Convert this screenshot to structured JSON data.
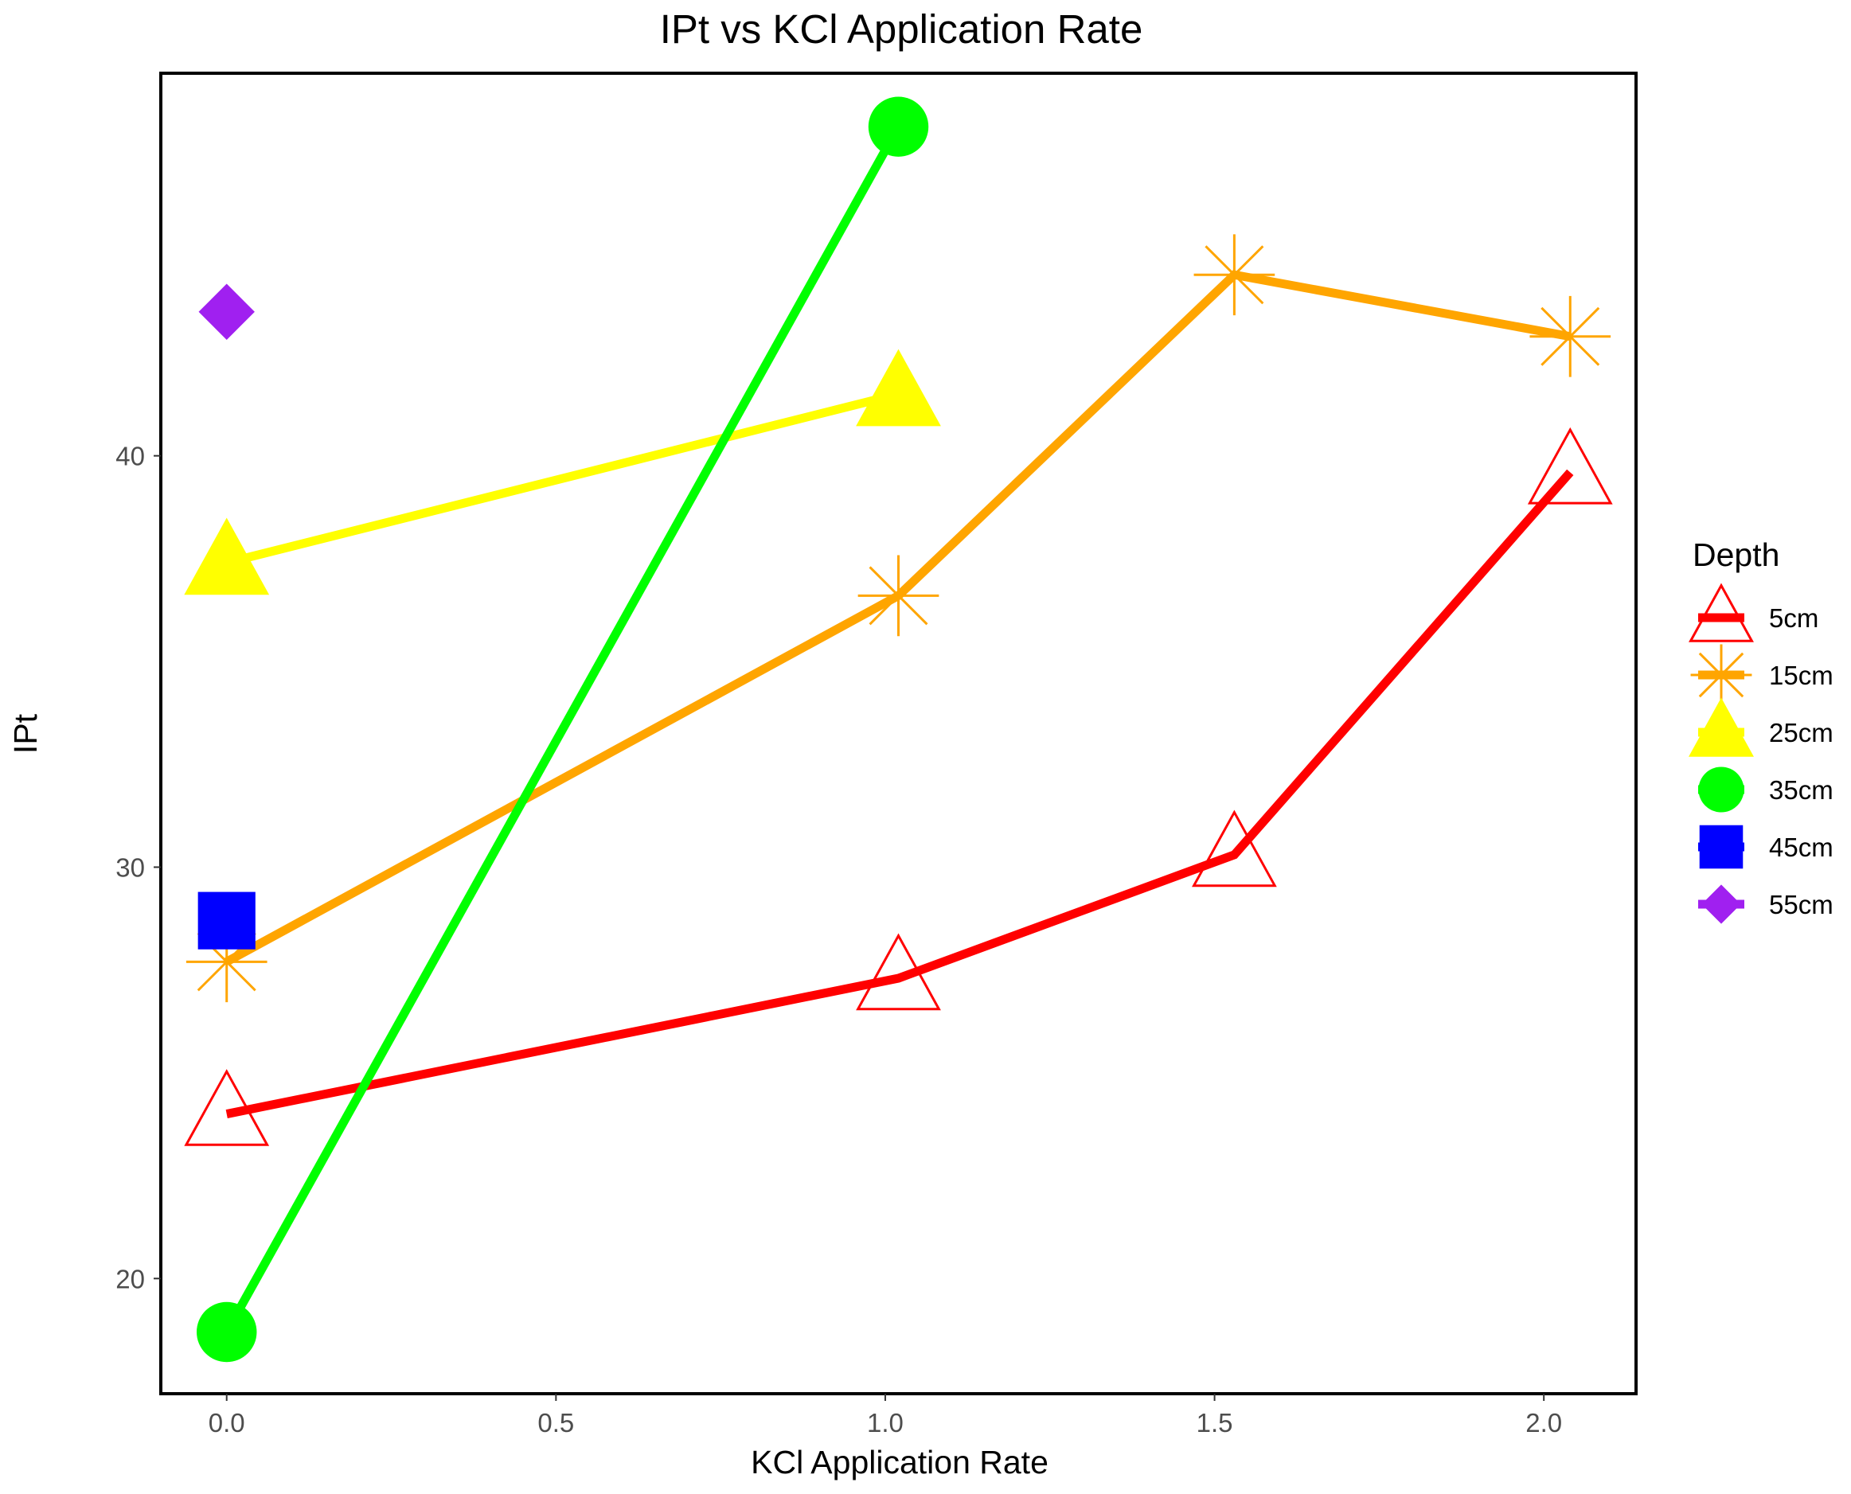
{
  "chart_data": {
    "type": "line",
    "title": "IPt vs KCl Application Rate",
    "xlabel": "KCl Application Rate",
    "ylabel": "IPt",
    "xlim": [
      -0.1,
      2.14
    ],
    "ylim": [
      17.2,
      49.3
    ],
    "x_ticks": [
      0.0,
      0.5,
      1.0,
      1.5,
      2.0
    ],
    "x_tick_labels": [
      "0.0",
      "0.5",
      "1.0",
      "1.5",
      "2.0"
    ],
    "y_ticks": [
      20,
      30,
      40
    ],
    "y_tick_labels": [
      "20",
      "30",
      "40"
    ],
    "grid": false,
    "legend": {
      "title": "Depth",
      "position": "right"
    },
    "series": [
      {
        "name": "5cm",
        "color": "#ff0000",
        "marker": "triangle-open",
        "x": [
          0.0,
          1.02,
          1.53,
          2.04
        ],
        "y": [
          24.0,
          27.3,
          30.3,
          39.6
        ]
      },
      {
        "name": "15cm",
        "color": "#ffa500",
        "marker": "asterisk",
        "x": [
          0.0,
          1.02,
          1.53,
          2.04
        ],
        "y": [
          27.7,
          36.6,
          44.4,
          42.9
        ]
      },
      {
        "name": "25cm",
        "color": "#ffff00",
        "marker": "triangle-filled",
        "x": [
          0.0,
          1.02
        ],
        "y": [
          37.4,
          41.5
        ]
      },
      {
        "name": "35cm",
        "color": "#00ff00",
        "marker": "circle",
        "x": [
          0.0,
          1.02
        ],
        "y": [
          18.7,
          48.0
        ]
      },
      {
        "name": "45cm",
        "color": "#0000ff",
        "marker": "square",
        "x": [
          0.0
        ],
        "y": [
          28.7
        ]
      },
      {
        "name": "55cm",
        "color": "#a020f0",
        "marker": "diamond",
        "x": [
          0.0
        ],
        "y": [
          43.5
        ]
      }
    ]
  }
}
